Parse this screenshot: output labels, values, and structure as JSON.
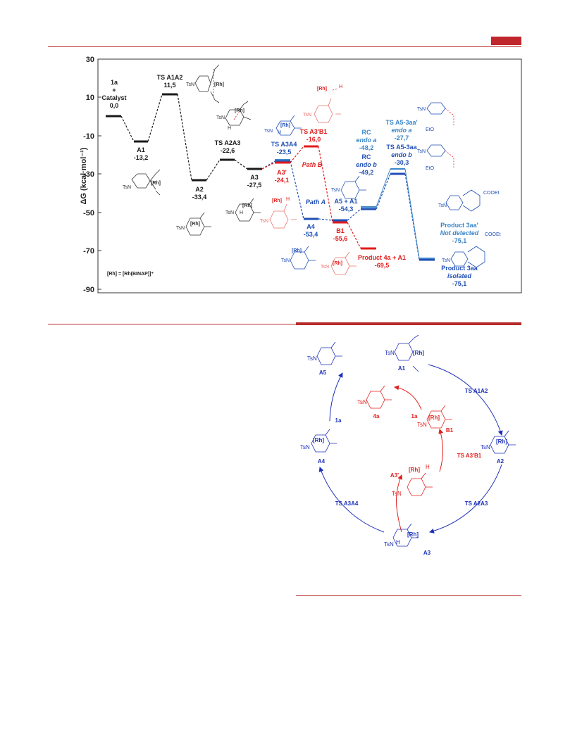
{
  "colors": {
    "header_accent": "#c0272d",
    "rule": "#b52a2a",
    "black_path": "#1a1a1a",
    "blue_path": "#1f4fb5",
    "light_blue": "#3a86c8",
    "red_path": "#e21b1b",
    "cycle_blue": "#1b2fb8",
    "cycle_red": "#e0201d"
  },
  "energy_profile": {
    "y_axis_label": "ΔG (kcal·mol⁻¹)",
    "y_ticks": [
      "30",
      "10",
      "-10",
      "-30",
      "-50",
      "-70",
      "-90"
    ],
    "legend_note": "[Rh] = [Rh(BINAP)]⁺",
    "states": {
      "start": {
        "name": "1a",
        "plus": "+",
        "catalyst": "Catalyst",
        "value": "0,0"
      },
      "A1": {
        "name": "A1",
        "value": "-13,2"
      },
      "TS_A1A2": {
        "name": "TS A1A2",
        "value": "11,5"
      },
      "A2": {
        "name": "A2",
        "value": "-33,4"
      },
      "TS_A2A3": {
        "name": "TS A2A3",
        "value": "-22,6"
      },
      "A3": {
        "name": "A3",
        "value": "-27,5"
      },
      "TS_A3A4": {
        "name": "TS A3A4",
        "value": "-23,5"
      },
      "A3p": {
        "name": "A3'",
        "value": "-24,1"
      },
      "TS_A3pB1": {
        "name": "TS A3'B1",
        "value": "-16,0"
      },
      "A4": {
        "name": "A4",
        "value": "-53,4"
      },
      "B1": {
        "name": "B1",
        "value": "-55,6"
      },
      "A5_A1": {
        "name": "A5 + A1",
        "value": "-54,3"
      },
      "RC_a": {
        "name": "RC",
        "sub": "endo a",
        "value": "-48,2"
      },
      "RC_b": {
        "name": "RC",
        "sub": "endo b",
        "value": "-49,2"
      },
      "TS_A5_3aap": {
        "name": "TS A5-3aa'",
        "sub": "endo a",
        "value": "-27,7"
      },
      "TS_A5_3aa": {
        "name": "TS A5-3aa",
        "sub": "endo b",
        "value": "-30,3"
      },
      "P4a": {
        "name": "Product 4a + A1",
        "value": "-69,5"
      },
      "P3aap": {
        "name": "Product 3aa'",
        "sub": "Not detected",
        "value": "-75,1"
      },
      "P3aa": {
        "name": "Product 3aa",
        "sub": "isolated",
        "value": "-75,1"
      }
    },
    "path_labels": {
      "path_a": "Path A",
      "path_b": "Path B"
    },
    "structure_labels": {
      "ts": "TsN",
      "rh": "[Rh]",
      "h": "H",
      "eto": "EtO",
      "cooet": "COOEt"
    }
  },
  "catalytic_cycle": {
    "nodes": {
      "A1": "A1",
      "A2": "A2",
      "A3": "A3",
      "A4": "A4",
      "A5": "A5",
      "A3p": "A3'",
      "B1": "B1",
      "P4a": "4a"
    },
    "steps": {
      "ts_a1a2": "TS A1A2",
      "ts_a2a3": "TS A2A3",
      "ts_a3a4": "TS A3A4",
      "ts_a3pb1": "TS A3'B1",
      "reagent_left": "1a",
      "reagent_inner": "1a"
    }
  }
}
